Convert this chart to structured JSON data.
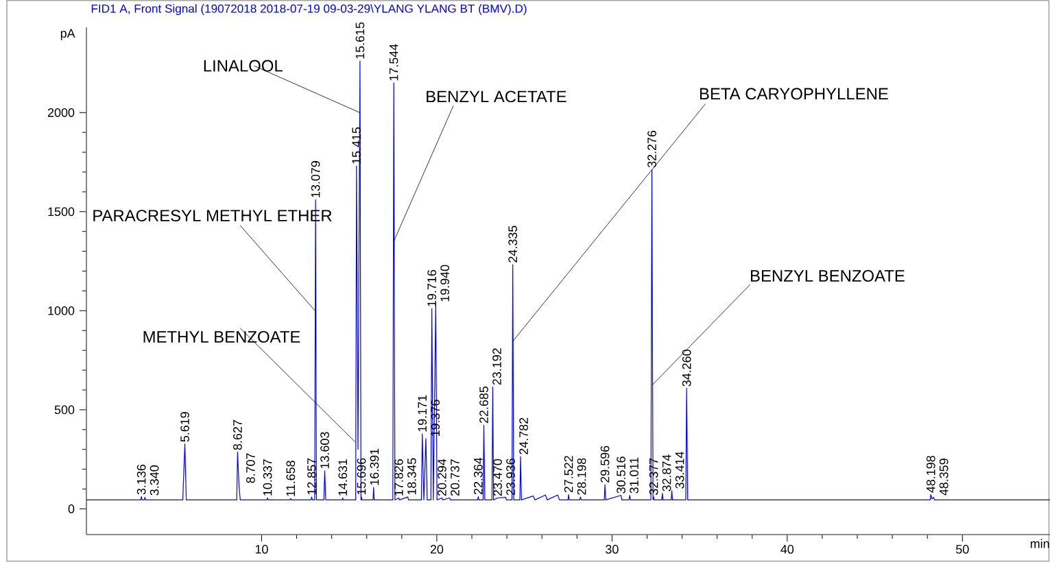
{
  "chart_data": {
    "type": "line",
    "title": "FID1 A, Front Signal (19072018 2018-07-19 09-03-29\\YLANG YLANG BT (BMV).D)",
    "xlabel": "min",
    "ylabel": "pA",
    "x": [
      0,
      3.1,
      3.136,
      3.17,
      3.3,
      3.34,
      3.38,
      5.5,
      5.619,
      5.7,
      8.58,
      8.627,
      8.707,
      8.78,
      10.3,
      10.337,
      10.37,
      11.62,
      11.658,
      11.7,
      12.82,
      12.857,
      12.9,
      13.03,
      13.079,
      13.13,
      13.55,
      13.603,
      13.66,
      14.6,
      14.631,
      14.66,
      15.37,
      15.415,
      15.5,
      15.615,
      15.67,
      15.696,
      15.73,
      16.36,
      16.391,
      16.43,
      17.49,
      17.544,
      17.61,
      17.826,
      17.86,
      18.345,
      18.38,
      19.12,
      19.171,
      19.26,
      19.376,
      19.45,
      19.66,
      19.716,
      19.8,
      19.94,
      20.01,
      20.294,
      20.33,
      20.737,
      20.77,
      22.33,
      22.364,
      22.4,
      22.64,
      22.685,
      22.74,
      23.15,
      23.192,
      23.24,
      23.47,
      23.936,
      23.97,
      24.29,
      24.335,
      24.39,
      24.74,
      24.782,
      24.83,
      25.5,
      25.6,
      26.2,
      26.3,
      26.9,
      27.0,
      27.49,
      27.522,
      27.56,
      28.16,
      28.198,
      28.24,
      29.56,
      29.596,
      29.64,
      30.516,
      30.56,
      30.97,
      31.011,
      31.05,
      32.22,
      32.276,
      32.34,
      32.377,
      32.41,
      32.84,
      32.874,
      32.91,
      33.38,
      33.414,
      33.45,
      34.21,
      34.26,
      34.32,
      48.16,
      48.198,
      48.26,
      48.359,
      48.4,
      55
    ],
    "values": [
      45,
      45,
      62,
      45,
      45,
      58,
      45,
      45,
      328,
      45,
      45,
      287,
      120,
      45,
      45,
      55,
      45,
      45,
      52,
      45,
      45,
      60,
      45,
      45,
      1560,
      45,
      45,
      192,
      45,
      45,
      55,
      45,
      45,
      1730,
      300,
      2260,
      45,
      60,
      45,
      45,
      108,
      45,
      45,
      2150,
      45,
      55,
      45,
      60,
      45,
      45,
      378,
      45,
      355,
      45,
      45,
      1010,
      45,
      1035,
      45,
      55,
      45,
      55,
      45,
      45,
      62,
      45,
      45,
      422,
      45,
      45,
      615,
      45,
      55,
      58,
      45,
      45,
      1233,
      45,
      45,
      264,
      45,
      65,
      45,
      70,
      45,
      70,
      45,
      45,
      72,
      45,
      45,
      60,
      45,
      45,
      122,
      45,
      68,
      45,
      45,
      68,
      45,
      45,
      1713,
      45,
      60,
      45,
      45,
      78,
      45,
      45,
      92,
      45,
      45,
      608,
      45,
      45,
      72,
      50,
      58,
      45,
      45
    ],
    "color": "#0000ff",
    "xlim": [
      0,
      55
    ],
    "ylim": [
      -130,
      2430
    ],
    "xticks": [
      10,
      20,
      30,
      40,
      50
    ],
    "yticks": [
      0,
      500,
      1000,
      1500,
      2000
    ],
    "annotations": [
      {
        "text": "LINALOOL",
        "x": 15.6,
        "y": 2000
      },
      {
        "text": "PARACRESYL METHYL ETHER",
        "x": 13.05,
        "y": 1000
      },
      {
        "text": "METHYL BENZOATE",
        "x": 15.33,
        "y": 338
      },
      {
        "text": "BENZYL ACETATE",
        "x": 17.55,
        "y": 1351
      },
      {
        "text": "BETA CARYOPHYLLENE",
        "x": 24.33,
        "y": 845
      },
      {
        "text": "BENZYL BENZOATE",
        "x": 32.3,
        "y": 625
      },
      {
        "text": "3.136",
        "x": 3.136,
        "y": 62
      },
      {
        "text": "3.340",
        "x": 3.34,
        "y": 58
      },
      {
        "text": "5.619",
        "x": 5.619,
        "y": 328
      },
      {
        "text": "8.627",
        "x": 8.627,
        "y": 287
      },
      {
        "text": "8.707",
        "x": 8.707,
        "y": 120
      },
      {
        "text": "10.337",
        "x": 10.337,
        "y": 55
      },
      {
        "text": "11.658",
        "x": 11.658,
        "y": 52
      },
      {
        "text": "12.857",
        "x": 12.857,
        "y": 60
      },
      {
        "text": "13.079",
        "x": 13.079,
        "y": 1560
      },
      {
        "text": "13.603",
        "x": 13.603,
        "y": 192
      },
      {
        "text": "14.631",
        "x": 14.631,
        "y": 55
      },
      {
        "text": "15.415",
        "x": 15.415,
        "y": 1730
      },
      {
        "text": "15.615",
        "x": 15.615,
        "y": 2260
      },
      {
        "text": "15.696",
        "x": 15.696,
        "y": 60
      },
      {
        "text": "16.391",
        "x": 16.391,
        "y": 108
      },
      {
        "text": "17.544",
        "x": 17.544,
        "y": 2150
      },
      {
        "text": "17.826",
        "x": 17.826,
        "y": 55
      },
      {
        "text": "18.345",
        "x": 18.345,
        "y": 60
      },
      {
        "text": "19.171",
        "x": 19.171,
        "y": 378
      },
      {
        "text": "19.376",
        "x": 19.376,
        "y": 355
      },
      {
        "text": "19.716",
        "x": 19.716,
        "y": 1010
      },
      {
        "text": "19.940",
        "x": 19.94,
        "y": 1035
      },
      {
        "text": "20.294",
        "x": 20.294,
        "y": 55
      },
      {
        "text": "20.737",
        "x": 20.737,
        "y": 55
      },
      {
        "text": "22.364",
        "x": 22.364,
        "y": 62
      },
      {
        "text": "22.685",
        "x": 22.685,
        "y": 422
      },
      {
        "text": "23.192",
        "x": 23.192,
        "y": 615
      },
      {
        "text": "23.470",
        "x": 23.47,
        "y": 55
      },
      {
        "text": "23.936",
        "x": 23.936,
        "y": 58
      },
      {
        "text": "24.335",
        "x": 24.335,
        "y": 1233
      },
      {
        "text": "24.782",
        "x": 24.782,
        "y": 264
      },
      {
        "text": "27.522",
        "x": 27.522,
        "y": 72
      },
      {
        "text": "28.198",
        "x": 28.198,
        "y": 60
      },
      {
        "text": "29.596",
        "x": 29.596,
        "y": 122
      },
      {
        "text": "30.516",
        "x": 30.516,
        "y": 68
      },
      {
        "text": "31.011",
        "x": 31.011,
        "y": 68
      },
      {
        "text": "32.276",
        "x": 32.276,
        "y": 1713
      },
      {
        "text": "32.377",
        "x": 32.377,
        "y": 60
      },
      {
        "text": "32.874",
        "x": 32.874,
        "y": 78
      },
      {
        "text": "33.414",
        "x": 33.414,
        "y": 92
      },
      {
        "text": "34.260",
        "x": 34.26,
        "y": 608
      },
      {
        "text": "48.198",
        "x": 48.198,
        "y": 72
      },
      {
        "text": "48.359",
        "x": 48.359,
        "y": 58
      }
    ]
  }
}
